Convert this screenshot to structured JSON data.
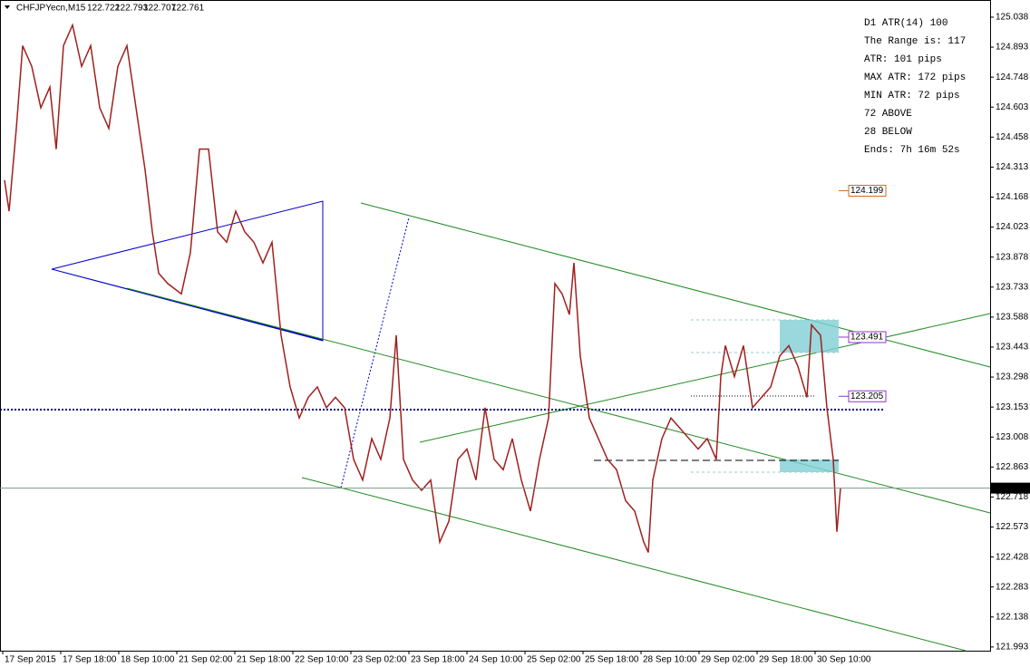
{
  "chart_data": {
    "type": "line",
    "symbol": "CHFJPYecn,M15",
    "ohlc": [
      122.722,
      122.793,
      122.707,
      122.761
    ],
    "last": 122.761,
    "series": [
      {
        "name": "CHFJPYecn",
        "color": "#a0201e",
        "x": [
          0.5,
          1.75,
          3.75,
          5.5,
          8,
          10.5,
          13,
          14.75,
          16.75,
          19.25,
          21.75,
          24.25,
          26.75,
          29.25,
          31.75,
          34.25,
          36.75,
          39.25,
          41.25,
          43,
          45.5,
          49.25,
          51.75,
          54.25,
          56.75,
          59.25,
          61.75,
          64.25,
          66.75,
          69.25,
          71.75,
          74.25,
          76.75,
          79.25,
          81.75,
          84.25,
          86.75,
          89.25,
          91.75,
          94.25,
          96.75,
          99.25,
          101.75,
          104.25,
          106.75,
          108.5,
          110.5,
          113,
          115.5,
          118,
          120.5,
          123,
          125.5,
          128,
          130.5,
          133,
          135.5,
          138,
          140.5,
          143,
          145.5,
          148,
          150.5,
          152.25,
          154.25,
          156.25,
          157.5,
          159.25,
          161.75,
          164.25,
          166.75,
          169.25,
          171.75,
          174.25,
          176.75,
          178,
          179.25,
          181.75,
          184.25,
          186.75,
          189.25,
          191.75,
          194.25,
          196.75,
          198,
          199.25,
          201.75,
          204.25,
          206.75,
          209.25,
          211.75,
          214.25,
          216.75,
          219.25,
          221.75,
          223,
          225.5,
          227.25,
          229,
          230,
          231
        ],
        "values": [
          124.25,
          124.1,
          124.5,
          124.9,
          124.8,
          124.6,
          124.7,
          124.4,
          124.9,
          125.0,
          124.8,
          124.9,
          124.6,
          124.5,
          124.8,
          124.9,
          124.6,
          124.3,
          124.0,
          123.8,
          123.75,
          123.7,
          123.9,
          124.4,
          124.4,
          124.0,
          123.95,
          124.1,
          124.0,
          123.95,
          123.85,
          123.95,
          123.5,
          123.25,
          123.1,
          123.2,
          123.25,
          123.15,
          123.2,
          123.15,
          122.9,
          122.8,
          123.0,
          122.9,
          123.1,
          123.5,
          122.9,
          122.8,
          122.75,
          122.8,
          122.5,
          122.6,
          122.9,
          122.95,
          122.8,
          123.15,
          122.9,
          122.85,
          123.0,
          122.8,
          122.65,
          122.9,
          123.1,
          123.75,
          123.7,
          123.6,
          123.85,
          123.4,
          123.1,
          123.0,
          122.9,
          122.85,
          122.7,
          122.65,
          122.5,
          122.45,
          122.8,
          123.0,
          123.1,
          123.05,
          123.0,
          122.95,
          123.0,
          122.9,
          123.3,
          123.45,
          123.3,
          123.45,
          123.15,
          123.2,
          123.25,
          123.4,
          123.45,
          123.35,
          123.2,
          123.55,
          123.5,
          123.15,
          122.9,
          122.55,
          122.761
        ]
      }
    ],
    "xlim": [
      -0.75,
      272.25
    ],
    "ylim": [
      121.975,
      125.121
    ],
    "xticks": [
      {
        "value": 0,
        "label": "17 Sep 2015"
      },
      {
        "value": 16,
        "label": "17 Sep 18:00"
      },
      {
        "value": 32,
        "label": "18 Sep 10:00"
      },
      {
        "value": 48,
        "label": "21 Sep 02:00"
      },
      {
        "value": 64,
        "label": "21 Sep 18:00"
      },
      {
        "value": 80,
        "label": "22 Sep 10:00"
      },
      {
        "value": 96,
        "label": "23 Sep 02:00"
      },
      {
        "value": 112,
        "label": "23 Sep 18:00"
      },
      {
        "value": 128,
        "label": "24 Sep 10:00"
      },
      {
        "value": 144,
        "label": "25 Sep 02:00"
      },
      {
        "value": 160,
        "label": "25 Sep 18:00"
      },
      {
        "value": 176,
        "label": "28 Sep 10:00"
      },
      {
        "value": 192,
        "label": "29 Sep 02:00"
      },
      {
        "value": 208,
        "label": "29 Sep 18:00"
      },
      {
        "value": 224,
        "label": "30 Sep 10:00"
      }
    ],
    "yticks": [
      125.038,
      124.893,
      124.748,
      124.603,
      124.458,
      124.313,
      124.168,
      124.023,
      123.878,
      123.733,
      123.588,
      123.443,
      123.298,
      123.153,
      123.008,
      122.863,
      122.718,
      122.573,
      122.428,
      122.283,
      122.138,
      121.993
    ],
    "levels": [
      {
        "value": 124.199,
        "color": "#d2691e"
      },
      {
        "value": 123.491,
        "color": "#9932cc"
      },
      {
        "value": 123.205,
        "color": "#9932cc"
      }
    ],
    "info": [
      {
        "text": "D1 ATR(14) 100",
        "color": "#4682b4"
      },
      {
        "text": "The Range is: 117",
        "color": "#d000d0"
      },
      {
        "text": "ATR: 101 pips",
        "color": "#9400d3"
      },
      {
        "text": "MAX ATR: 172 pips",
        "color": "#d2691e"
      },
      {
        "text": "MIN ATR: 72 pips",
        "color": "#d2691e"
      },
      {
        "text": "72 ABOVE",
        "color": "#0000cd"
      },
      {
        "text": "28 BELOW",
        "color": "#0000cd"
      },
      {
        "text": "Ends: 7h 16m 52s",
        "color": "#808080"
      }
    ]
  }
}
